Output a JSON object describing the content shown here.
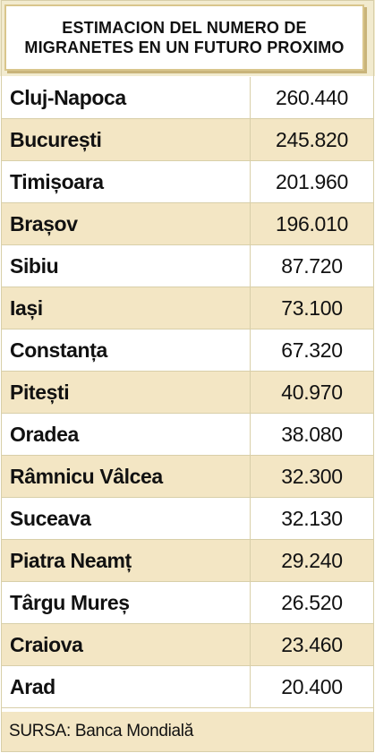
{
  "chart_data": {
    "type": "table",
    "title": "ESTIMACION DEL NUMERO DE\nMIGRANETES EN UN FUTURO PROXIMO",
    "columns": [
      "",
      ""
    ],
    "rows": [
      {
        "city": "Cluj-Napoca",
        "value": "260.440"
      },
      {
        "city": "București",
        "value": "245.820"
      },
      {
        "city": "Timișoara",
        "value": "201.960"
      },
      {
        "city": "Brașov",
        "value": "196.010"
      },
      {
        "city": "Sibiu",
        "value": "87.720"
      },
      {
        "city": "Iași",
        "value": "73.100"
      },
      {
        "city": "Constanța",
        "value": "67.320"
      },
      {
        "city": "Pitești",
        "value": "40.970"
      },
      {
        "city": "Oradea",
        "value": "38.080"
      },
      {
        "city": "Râmnicu Vâlcea",
        "value": "32.300"
      },
      {
        "city": "Suceava",
        "value": "32.130"
      },
      {
        "city": "Piatra Neamț",
        "value": "29.240"
      },
      {
        "city": "Târgu Mureș",
        "value": "26.520"
      },
      {
        "city": "Craiova",
        "value": "23.460"
      },
      {
        "city": "Arad",
        "value": "20.400"
      }
    ],
    "source": "SURSA: Banca Mondială"
  },
  "colors": {
    "header_background": "#f2ebcf",
    "header_border": "#d9c68c",
    "stripe": "#f3e6c4",
    "divider": "#d8cfa9",
    "text": "#111111"
  }
}
